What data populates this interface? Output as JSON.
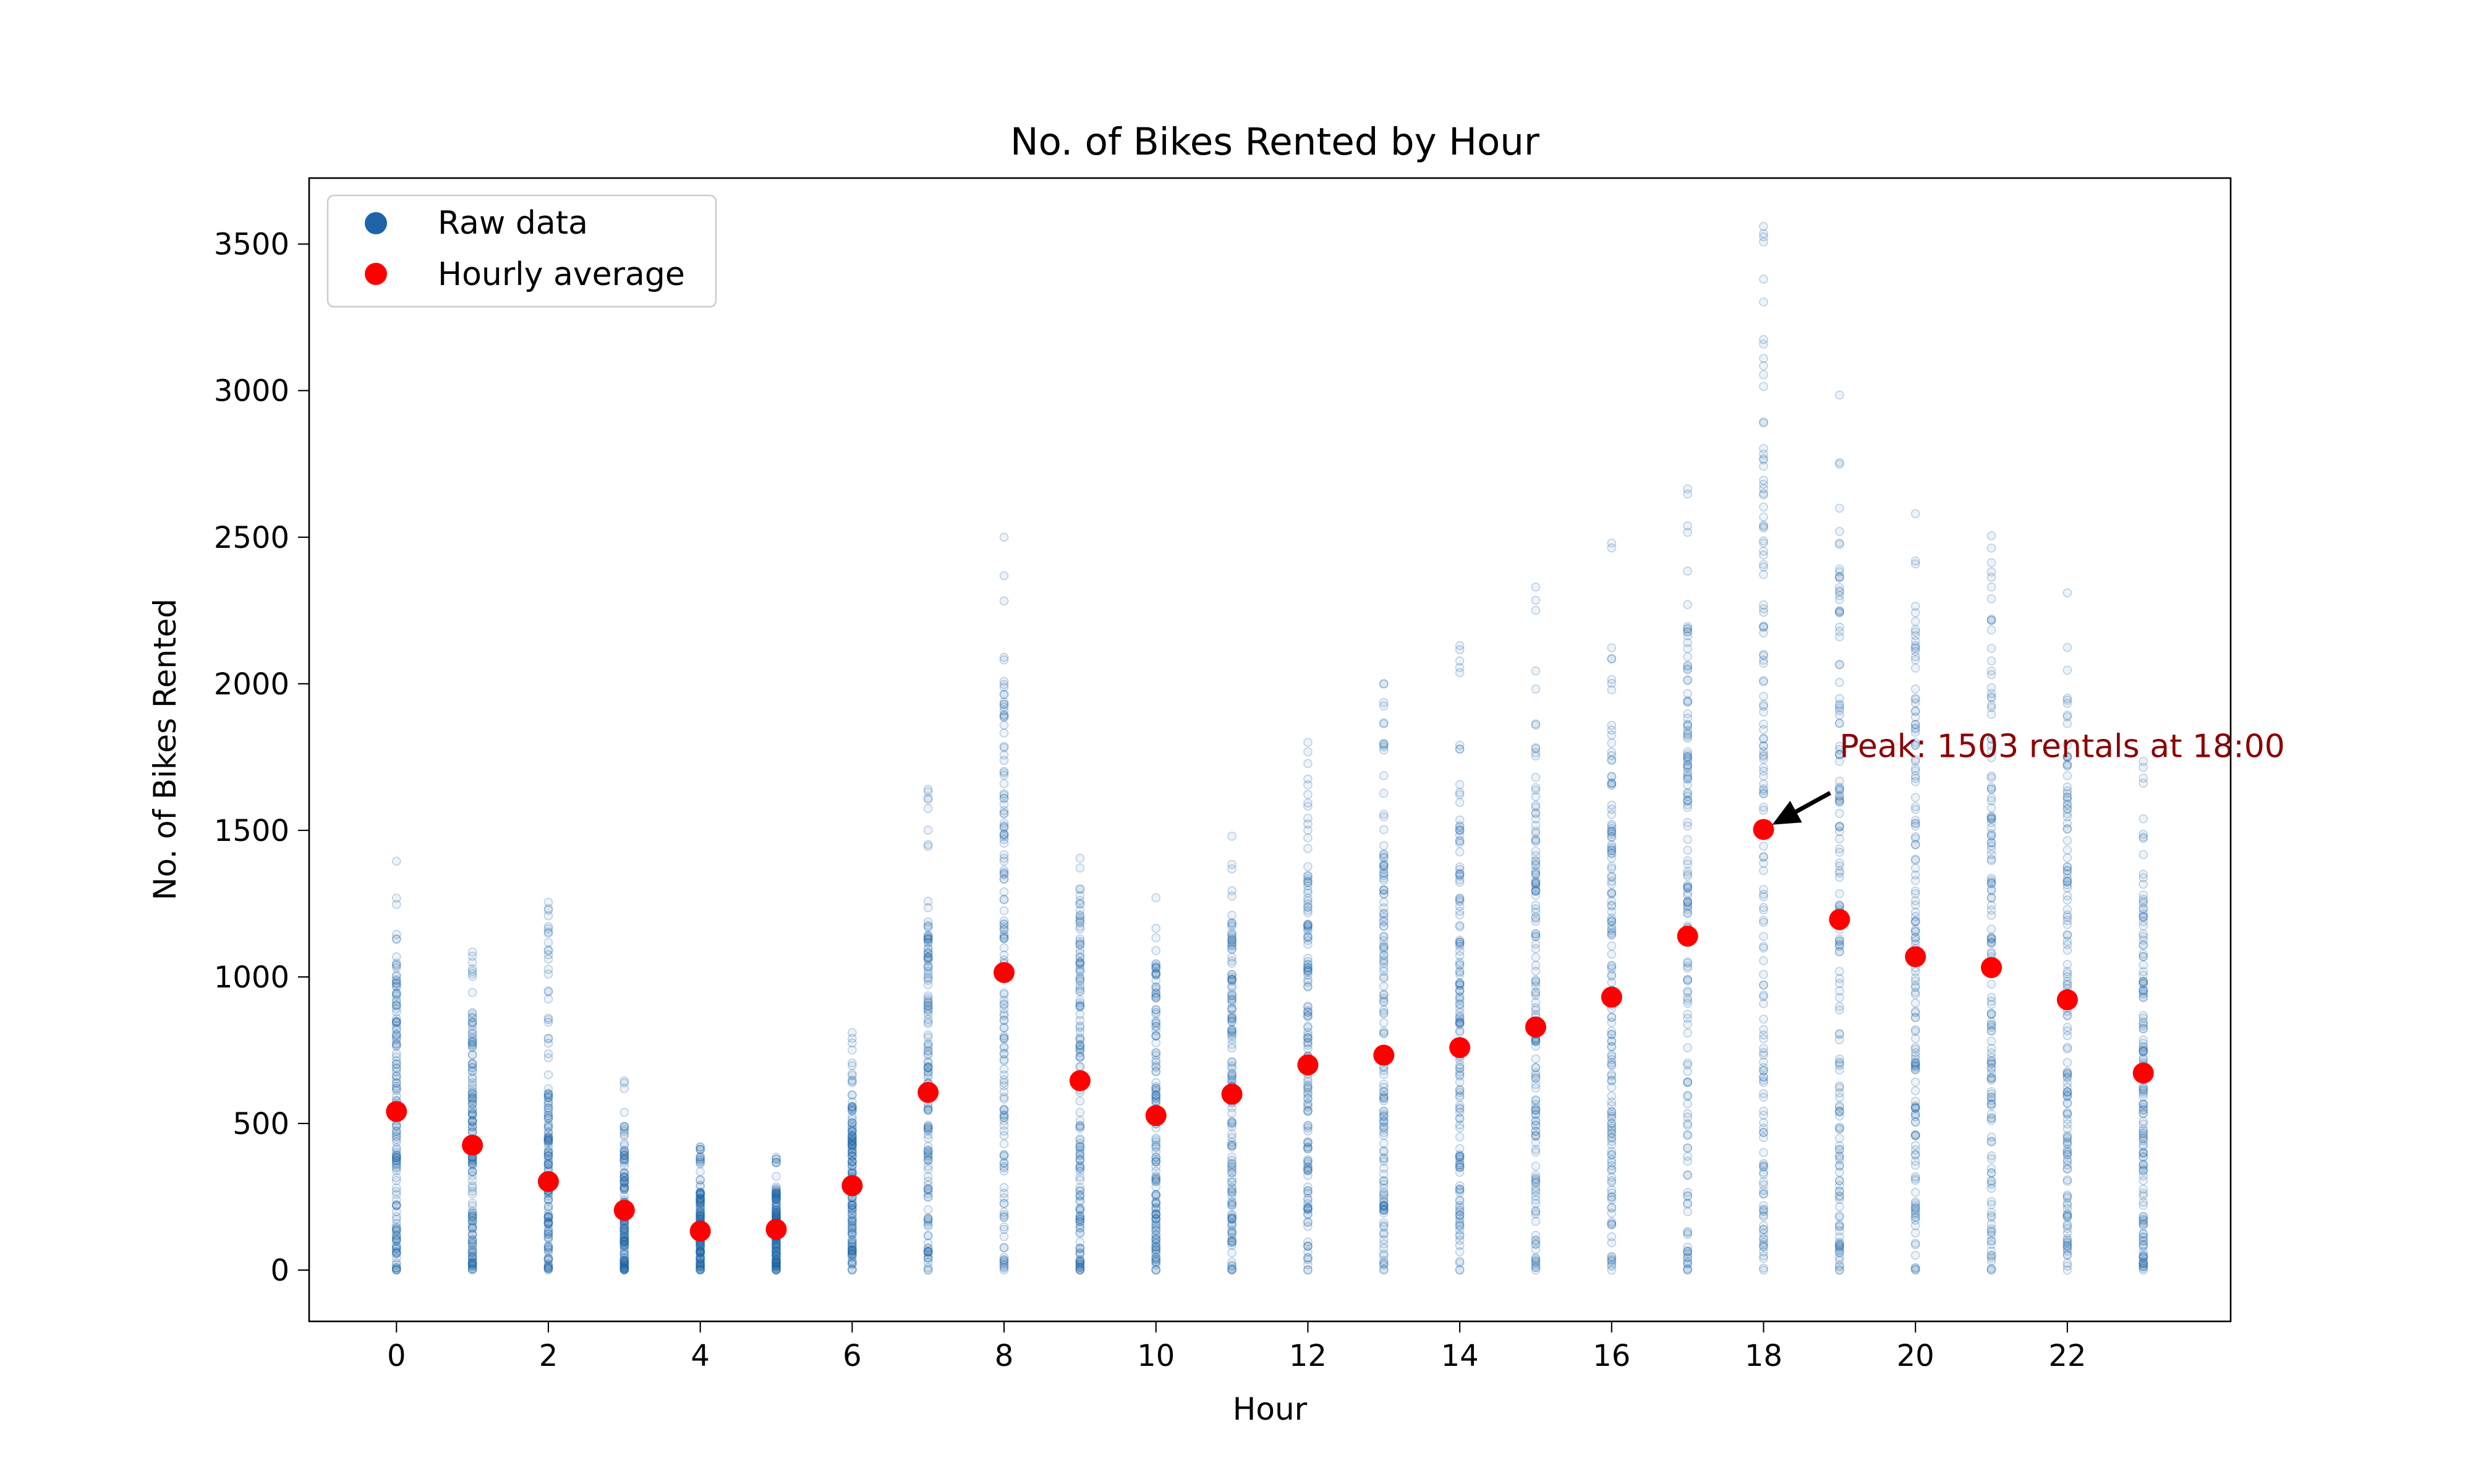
{
  "chart_data": {
    "type": "scatter",
    "title": "No. of Bikes Rented by Hour",
    "xlabel": "Hour",
    "ylabel": "No. of Bikes Rented",
    "xlim": [
      -1.15,
      24.15
    ],
    "ylim": [
      -175,
      3725
    ],
    "xticks": [
      0,
      2,
      4,
      6,
      8,
      10,
      12,
      14,
      16,
      18,
      20,
      22
    ],
    "yticks": [
      0,
      500,
      1000,
      1500,
      2000,
      2500,
      3000,
      3500
    ],
    "grid": false,
    "legend_position": "top-left",
    "colors": {
      "raw": "#1f63a8",
      "average": "#ff0000",
      "annotation": "#8b0000"
    },
    "series": [
      {
        "name": "Raw data",
        "marker": "open-circle",
        "x": [
          0,
          1,
          2,
          3,
          4,
          5,
          6,
          7,
          8,
          9,
          10,
          11,
          12,
          13,
          14,
          15,
          16,
          17,
          18,
          19,
          20,
          21,
          22,
          23
        ],
        "min": [
          0,
          0,
          0,
          0,
          0,
          0,
          0,
          0,
          0,
          0,
          0,
          0,
          0,
          0,
          0,
          0,
          0,
          0,
          0,
          0,
          0,
          0,
          0,
          0
        ],
        "max": [
          1395,
          1085,
          1255,
          645,
          420,
          385,
          810,
          1640,
          2500,
          1405,
          1270,
          1480,
          1800,
          2000,
          2130,
          2330,
          2480,
          2665,
          3560,
          2985,
          2580,
          2505,
          2310,
          1735
        ]
      },
      {
        "name": "Hourly average",
        "marker": "filled-circle",
        "x": [
          0,
          1,
          2,
          3,
          4,
          5,
          6,
          7,
          8,
          9,
          10,
          11,
          12,
          13,
          14,
          15,
          16,
          17,
          18,
          19,
          20,
          21,
          22,
          23
        ],
        "y": [
          541,
          426,
          302,
          204,
          133,
          139,
          288,
          606,
          1015,
          646,
          527,
          600,
          700,
          733,
          759,
          829,
          931,
          1139,
          1503,
          1196,
          1069,
          1032,
          922,
          672
        ]
      }
    ],
    "annotations": [
      {
        "text": "Peak: 1503 rentals at 18:00",
        "x": 18,
        "y": 1503,
        "text_x": 19,
        "text_y": 1750
      }
    ]
  }
}
